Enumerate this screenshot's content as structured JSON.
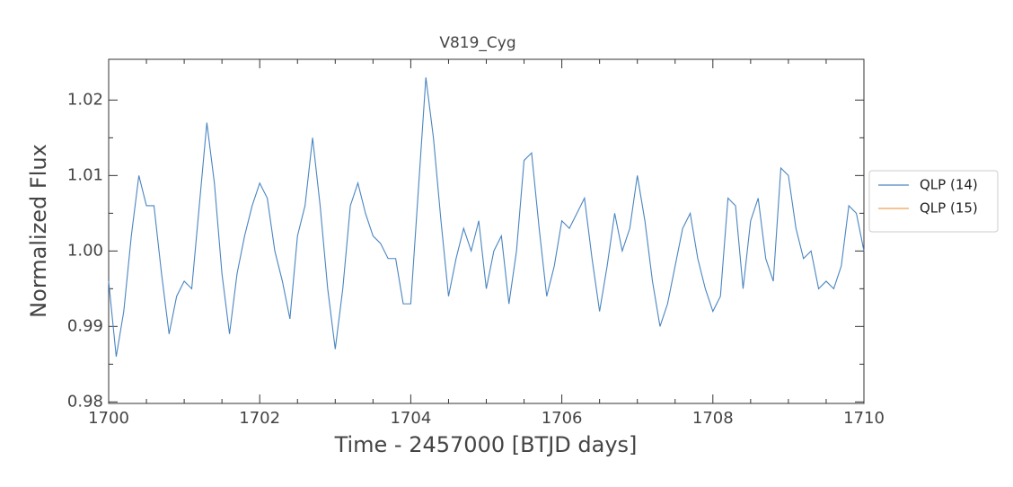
{
  "chart_data": {
    "type": "line",
    "title": "V819_Cyg",
    "x_label": "Time - 2457000 [BTJD days]",
    "y_label": "Normalized Flux",
    "x": [
      1700,
      1700.1,
      1700.2,
      1700.3,
      1700.4,
      1700.5,
      1700.6,
      1700.7,
      1700.8,
      1700.9,
      1701,
      1701.1,
      1701.2,
      1701.3,
      1701.4,
      1701.5,
      1701.6,
      1701.7,
      1701.8,
      1701.9,
      1702,
      1702.1,
      1702.2,
      1702.3,
      1702.4,
      1702.5,
      1702.6,
      1702.7,
      1702.8,
      1702.9,
      1703,
      1703.1,
      1703.2,
      1703.3,
      1703.4,
      1703.5,
      1703.6,
      1703.7,
      1703.8,
      1703.9,
      1704,
      1704.1,
      1704.2,
      1704.3,
      1704.4,
      1704.5,
      1704.6,
      1704.7,
      1704.8,
      1704.9,
      1705,
      1705.1,
      1705.2,
      1705.3,
      1705.4,
      1705.5,
      1705.6,
      1705.7,
      1705.8,
      1705.9,
      1706,
      1706.1,
      1706.2,
      1706.3,
      1706.4,
      1706.5,
      1706.6,
      1706.7,
      1706.8,
      1706.9,
      1707,
      1707.1,
      1707.2,
      1707.3,
      1707.4,
      1707.5,
      1707.6,
      1707.7,
      1707.8,
      1707.9,
      1708,
      1708.1,
      1708.2,
      1708.3,
      1708.4,
      1708.5,
      1708.6,
      1708.7,
      1708.8,
      1708.9,
      1709,
      1709.1,
      1709.2,
      1709.3,
      1709.4,
      1709.5,
      1709.6,
      1709.7,
      1709.8,
      1709.9,
      1710
    ],
    "series": [
      {
        "name": "QLP (14)",
        "color": "#4a85c0",
        "values": [
          0.996,
          0.986,
          0.992,
          1.002,
          1.01,
          1.006,
          1.006,
          0.997,
          0.989,
          0.994,
          0.996,
          0.995,
          1.006,
          1.017,
          1.009,
          0.997,
          0.989,
          0.997,
          1.002,
          1.006,
          1.009,
          1.007,
          1.0,
          0.996,
          0.991,
          1.002,
          1.006,
          1.015,
          1.006,
          0.995,
          0.987,
          0.995,
          1.006,
          1.009,
          1.005,
          1.002,
          1.001,
          0.999,
          0.999,
          0.993,
          0.993,
          1.008,
          1.023,
          1.015,
          1.004,
          0.994,
          0.999,
          1.003,
          1.0,
          1.004,
          0.995,
          1.0,
          1.002,
          0.993,
          1.0,
          1.012,
          1.013,
          1.003,
          0.994,
          0.998,
          1.004,
          1.003,
          1.005,
          1.007,
          0.999,
          0.992,
          0.998,
          1.005,
          1.0,
          1.003,
          1.01,
          1.004,
          0.996,
          0.99,
          0.993,
          0.998,
          1.003,
          1.005,
          0.999,
          0.995,
          0.992,
          0.994,
          1.007,
          1.006,
          0.995,
          1.004,
          1.007,
          0.999,
          0.996,
          1.011,
          1.01,
          1.003,
          0.999,
          1.0,
          0.995,
          0.996,
          0.995,
          0.998,
          1.006,
          1.005,
          1.0
        ]
      },
      {
        "name": "QLP (15)",
        "color": "#f0a050",
        "values": [
          null,
          null,
          null,
          null,
          null,
          null,
          null,
          null,
          null,
          null,
          null,
          null,
          null,
          null,
          null,
          null,
          null,
          null,
          null,
          null,
          null,
          null,
          null,
          null,
          null,
          null,
          null,
          null,
          null,
          null,
          null,
          null,
          null,
          null,
          null,
          null,
          null,
          null,
          null,
          null,
          null,
          null,
          null,
          null,
          null,
          null,
          null,
          null,
          null,
          null,
          null,
          null,
          null,
          null,
          null,
          null,
          null,
          null,
          null,
          null,
          null,
          null,
          null,
          null,
          null,
          null,
          null,
          null,
          null,
          null,
          null,
          null,
          null,
          null,
          null,
          null,
          null,
          null,
          null,
          null,
          null,
          null,
          null,
          null,
          null,
          null,
          null,
          null,
          null,
          null,
          null,
          null,
          null,
          null,
          null,
          null,
          null,
          null,
          null,
          null,
          null
        ]
      }
    ],
    "xlim": [
      1700,
      1710
    ],
    "xticks": [
      1700,
      1702,
      1704,
      1706,
      1708,
      1710
    ],
    "x_minor_ticks": [
      1700.5,
      1701,
      1701.5,
      1702.5,
      1703,
      1703.5,
      1704.5,
      1705,
      1705.5,
      1706.5,
      1707,
      1707.5,
      1708.5,
      1709,
      1709.5
    ],
    "ylim": [
      0.9798,
      1.0254
    ],
    "yticks": [
      0.98,
      0.99,
      {
        "value": 1.0,
        "label": "1.00"
      },
      1.01,
      1.02
    ],
    "y_minor_ticks": [
      0.985,
      0.995,
      1.005,
      1.015
    ],
    "legend": "outside-right"
  }
}
